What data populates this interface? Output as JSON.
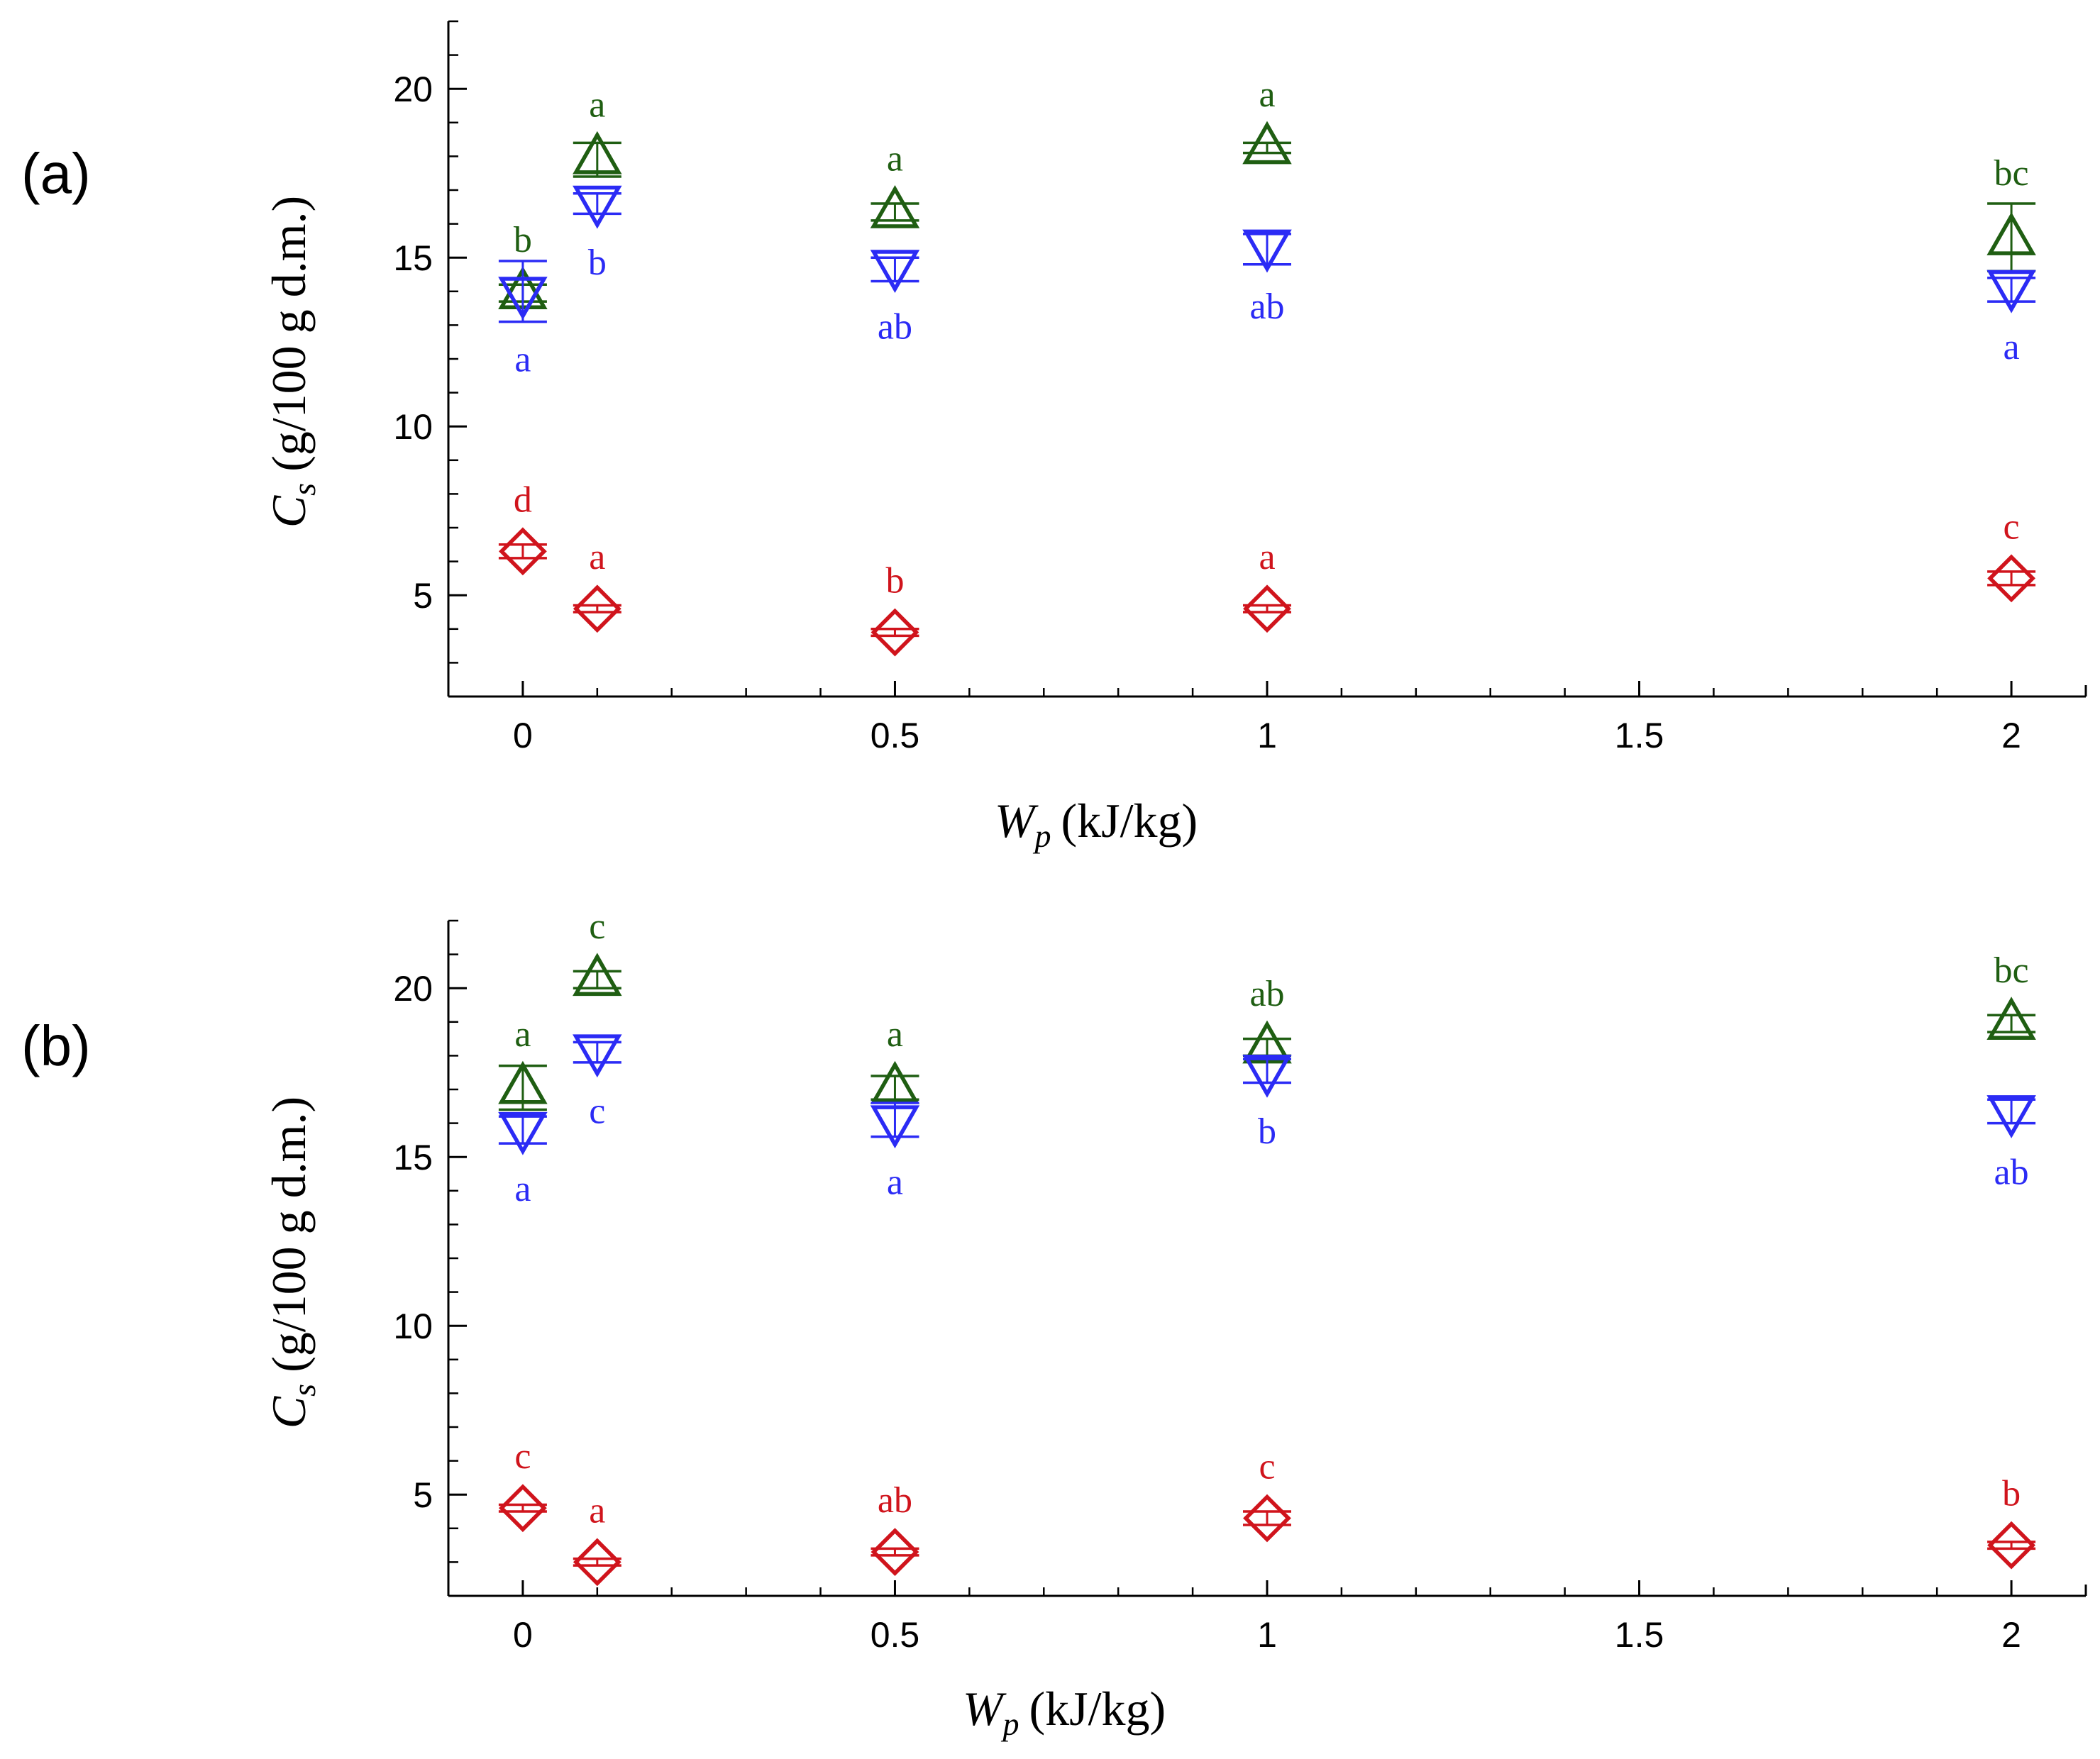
{
  "colors": {
    "green": "#1F5E12",
    "blue": "#2B2BF5",
    "red": "#D0141C",
    "axis": "#000000"
  },
  "chart_data": [
    {
      "type": "scatter",
      "panel_label": "(a)",
      "xlabel": {
        "symbol": "W",
        "subscript": "p",
        "units": "(kJ/kg)"
      },
      "ylabel": {
        "symbol": "C",
        "subscript": "s",
        "units": "(g/100 g d.m.)"
      },
      "xlim": [
        -0.1,
        2.1
      ],
      "ylim": [
        2,
        22
      ],
      "x_ticks": [
        0,
        0.5,
        1,
        1.5,
        2
      ],
      "x_tick_labels": [
        "0",
        "0.5",
        "1",
        "1.5",
        "2"
      ],
      "y_ticks": [
        5,
        10,
        15,
        20
      ],
      "y_tick_labels": [
        "5",
        "10",
        "15",
        "20"
      ],
      "series": [
        {
          "name": "green",
          "marker": "triangle-up",
          "color": "#1F5E12",
          "points": [
            {
              "x": 0,
              "y": 14.0,
              "err_lo": 13.7,
              "err_hi": 14.2,
              "label": "b",
              "label_pos": "above"
            },
            {
              "x": 0.1,
              "y": 18.0,
              "err_lo": 17.4,
              "err_hi": 18.4,
              "label": "a",
              "label_pos": "above"
            },
            {
              "x": 0.5,
              "y": 16.4,
              "err_lo": 16.1,
              "err_hi": 16.6,
              "label": "a",
              "label_pos": "above"
            },
            {
              "x": 1,
              "y": 18.3,
              "err_lo": 18.1,
              "err_hi": 18.4,
              "label": "a",
              "label_pos": "above"
            },
            {
              "x": 2,
              "y": 15.6,
              "err_lo": 14.6,
              "err_hi": 16.6,
              "label": "bc",
              "label_pos": "above"
            }
          ]
        },
        {
          "name": "blue",
          "marker": "triangle-down",
          "color": "#2B2BF5",
          "points": [
            {
              "x": 0,
              "y": 13.9,
              "err_lo": 13.1,
              "err_hi": 14.9,
              "label": "a",
              "label_pos": "below"
            },
            {
              "x": 0.1,
              "y": 16.6,
              "err_lo": 16.3,
              "err_hi": 16.9,
              "label": "b",
              "label_pos": "below"
            },
            {
              "x": 0.5,
              "y": 14.7,
              "err_lo": 14.3,
              "err_hi": 15.0,
              "label": "ab",
              "label_pos": "below"
            },
            {
              "x": 1,
              "y": 15.3,
              "err_lo": 14.8,
              "err_hi": 15.7,
              "label": "ab",
              "label_pos": "below"
            },
            {
              "x": 2,
              "y": 14.1,
              "err_lo": 13.7,
              "err_hi": 14.4,
              "label": "a",
              "label_pos": "below"
            }
          ]
        },
        {
          "name": "red",
          "marker": "diamond",
          "color": "#D0141C",
          "points": [
            {
              "x": 0,
              "y": 6.3,
              "err_lo": 6.1,
              "err_hi": 6.5,
              "label": "d",
              "label_pos": "above"
            },
            {
              "x": 0.1,
              "y": 4.6,
              "err_lo": 4.5,
              "err_hi": 4.7,
              "label": "a",
              "label_pos": "above"
            },
            {
              "x": 0.5,
              "y": 3.9,
              "err_lo": 3.8,
              "err_hi": 4.0,
              "label": "b",
              "label_pos": "above"
            },
            {
              "x": 1,
              "y": 4.6,
              "err_lo": 4.5,
              "err_hi": 4.7,
              "label": "a",
              "label_pos": "above"
            },
            {
              "x": 2,
              "y": 5.5,
              "err_lo": 5.3,
              "err_hi": 5.7,
              "label": "c",
              "label_pos": "above"
            }
          ]
        }
      ]
    },
    {
      "type": "scatter",
      "panel_label": "(b)",
      "xlabel": {
        "symbol": "W",
        "subscript": "p",
        "units": "(kJ/kg)"
      },
      "ylabel": {
        "symbol": "C",
        "subscript": "s",
        "units": "(g/100 g d.m.)"
      },
      "xlim": [
        -0.1,
        2.1
      ],
      "ylim": [
        2,
        22
      ],
      "x_ticks": [
        0,
        0.5,
        1,
        1.5,
        2
      ],
      "x_tick_labels": [
        "0",
        "0.5",
        "1",
        "1.5",
        "2"
      ],
      "y_ticks": [
        5,
        10,
        15,
        20
      ],
      "y_tick_labels": [
        "5",
        "10",
        "15",
        "20"
      ],
      "series": [
        {
          "name": "green",
          "marker": "triangle-up",
          "color": "#1F5E12",
          "points": [
            {
              "x": 0,
              "y": 17.1,
              "err_lo": 16.4,
              "err_hi": 17.7,
              "label": "a",
              "label_pos": "above"
            },
            {
              "x": 0.1,
              "y": 20.3,
              "err_lo": 20.0,
              "err_hi": 20.5,
              "label": "c",
              "label_pos": "above"
            },
            {
              "x": 0.5,
              "y": 17.1,
              "err_lo": 16.7,
              "err_hi": 17.4,
              "label": "a",
              "label_pos": "above"
            },
            {
              "x": 1,
              "y": 18.3,
              "err_lo": 18.0,
              "err_hi": 18.5,
              "label": "ab",
              "label_pos": "above"
            },
            {
              "x": 2,
              "y": 19.0,
              "err_lo": 18.7,
              "err_hi": 19.2,
              "label": "bc",
              "label_pos": "above"
            }
          ]
        },
        {
          "name": "blue",
          "marker": "triangle-down",
          "color": "#2B2BF5",
          "points": [
            {
              "x": 0,
              "y": 15.8,
              "err_lo": 15.4,
              "err_hi": 16.2,
              "label": "a",
              "label_pos": "below"
            },
            {
              "x": 0.1,
              "y": 18.1,
              "err_lo": 17.8,
              "err_hi": 18.4,
              "label": "c",
              "label_pos": "below"
            },
            {
              "x": 0.5,
              "y": 16.0,
              "err_lo": 15.6,
              "err_hi": 16.6,
              "label": "a",
              "label_pos": "below"
            },
            {
              "x": 1,
              "y": 17.5,
              "err_lo": 17.2,
              "err_hi": 17.9,
              "label": "b",
              "label_pos": "below"
            },
            {
              "x": 2,
              "y": 16.3,
              "err_lo": 16.0,
              "err_hi": 16.7,
              "label": "ab",
              "label_pos": "below"
            }
          ]
        },
        {
          "name": "red",
          "marker": "diamond",
          "color": "#D0141C",
          "points": [
            {
              "x": 0,
              "y": 4.6,
              "err_lo": 4.5,
              "err_hi": 4.7,
              "label": "c",
              "label_pos": "above"
            },
            {
              "x": 0.1,
              "y": 3.0,
              "err_lo": 2.9,
              "err_hi": 3.1,
              "label": "a",
              "label_pos": "above"
            },
            {
              "x": 0.5,
              "y": 3.3,
              "err_lo": 3.2,
              "err_hi": 3.4,
              "label": "ab",
              "label_pos": "above"
            },
            {
              "x": 1,
              "y": 4.3,
              "err_lo": 4.1,
              "err_hi": 4.5,
              "label": "c",
              "label_pos": "above"
            },
            {
              "x": 2,
              "y": 3.5,
              "err_lo": 3.4,
              "err_hi": 3.6,
              "label": "b",
              "label_pos": "above"
            }
          ]
        }
      ]
    }
  ]
}
